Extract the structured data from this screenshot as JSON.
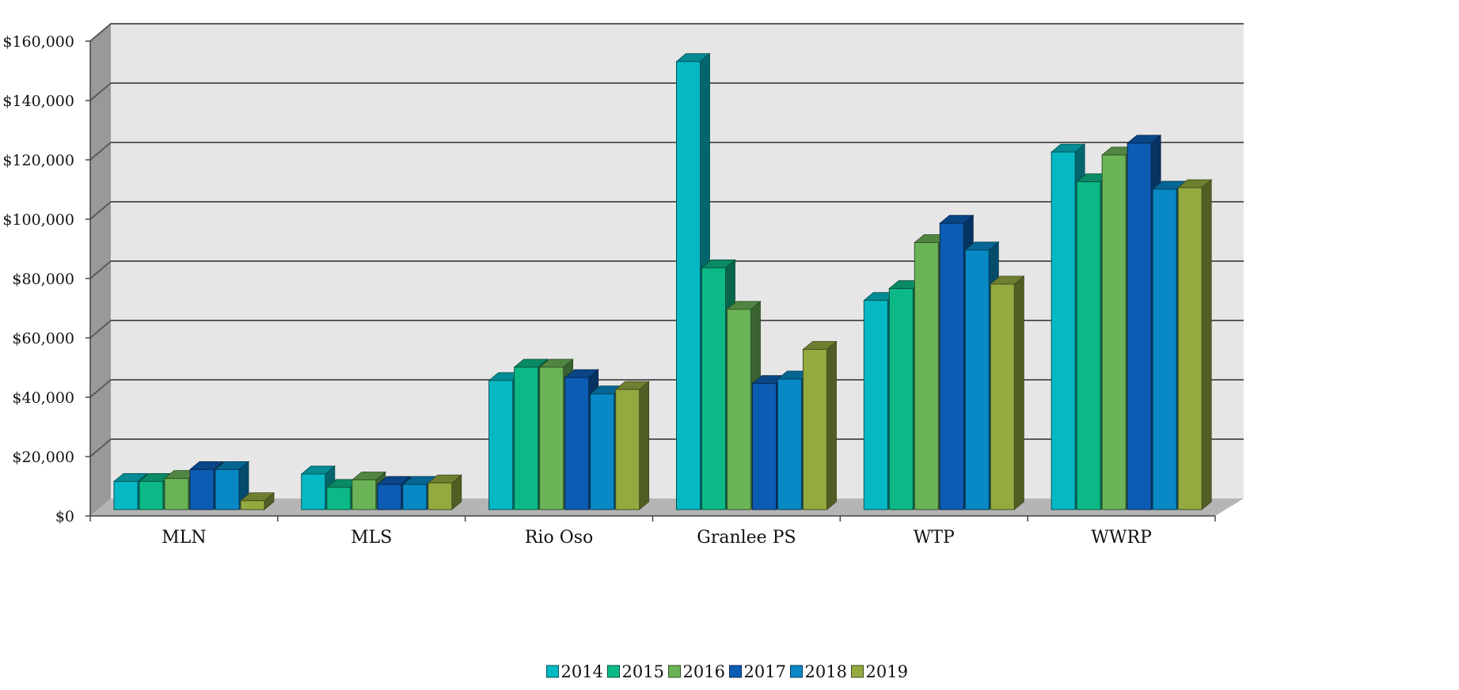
{
  "chart_data": {
    "type": "bar",
    "title": "",
    "xlabel": "",
    "ylabel": "",
    "categories": [
      "MLN",
      "MLS",
      "Rio Oso",
      "Granlee PS",
      "WTP",
      "WWRP"
    ],
    "series": [
      {
        "name": "2014",
        "color": "#05b9c4",
        "values": [
          9500,
          12000,
          43500,
          151000,
          70500,
          120500
        ]
      },
      {
        "name": "2015",
        "color": "#0db887",
        "values": [
          9500,
          7500,
          48000,
          81500,
          74500,
          110500
        ]
      },
      {
        "name": "2016",
        "color": "#6ab357",
        "values": [
          10500,
          10000,
          48000,
          67500,
          90000,
          119500
        ]
      },
      {
        "name": "2017",
        "color": "#0d5cb3",
        "values": [
          13500,
          8500,
          44500,
          42500,
          96500,
          123500
        ]
      },
      {
        "name": "2018",
        "color": "#0888c4",
        "values": [
          13500,
          8500,
          39000,
          44000,
          87500,
          108000
        ]
      },
      {
        "name": "2019",
        "color": "#93aa40",
        "values": [
          3000,
          9000,
          40500,
          54000,
          76000,
          108500
        ]
      }
    ],
    "ylim": [
      0,
      160000
    ],
    "yticks": [
      0,
      20000,
      40000,
      60000,
      80000,
      100000,
      120000,
      140000,
      160000
    ],
    "ytick_labels": [
      "$0",
      "$20,000",
      "$40,000",
      "$60,000",
      "$80,000",
      "$100,000",
      "$120,000",
      "$140,000",
      "$160,000"
    ],
    "grid": true,
    "legend": "bottom",
    "style": "3d-clustered-column",
    "colors": {
      "back_wall": "#e6e6e6",
      "side_wall": "#999999",
      "floor": "#b5b5b5",
      "gridline": "#5a5a5a"
    }
  }
}
